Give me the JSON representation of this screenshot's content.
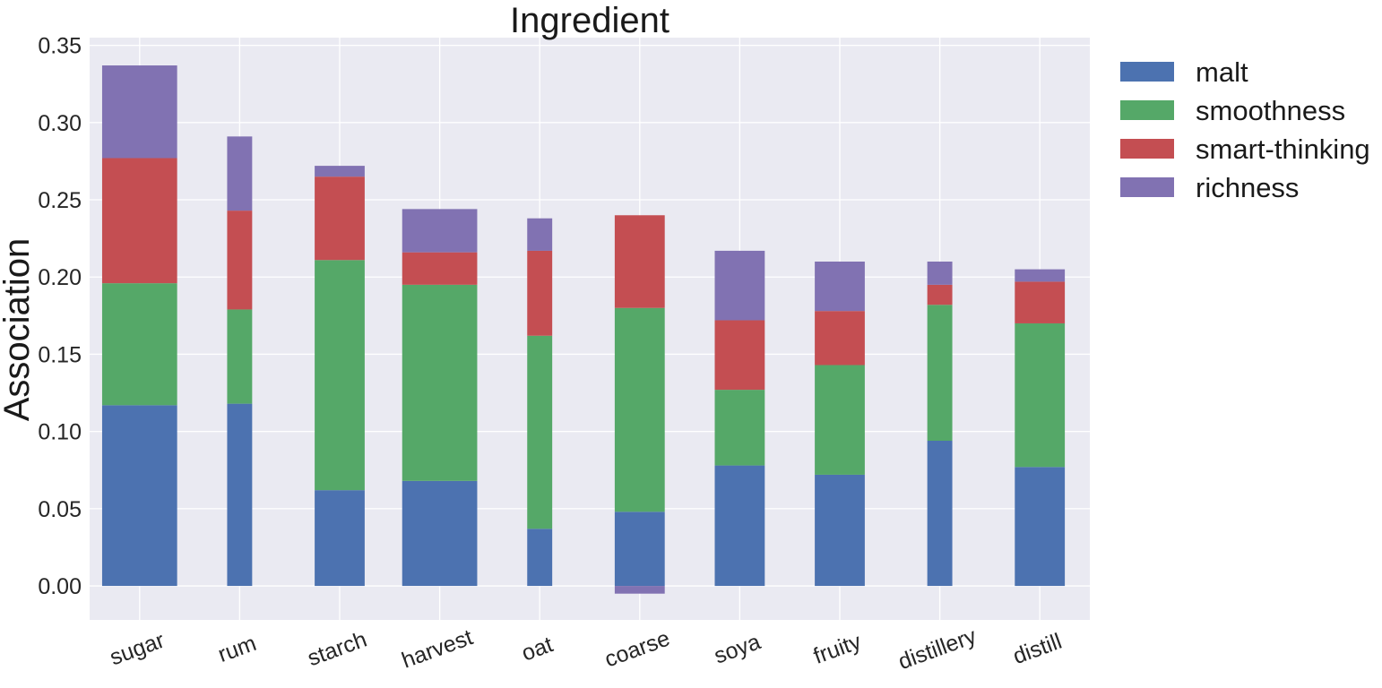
{
  "chart_data": {
    "type": "bar",
    "stacked": true,
    "title": "Ingredient",
    "xlabel": "",
    "ylabel": "Association",
    "ylim": [
      -0.022,
      0.355
    ],
    "yticks": [
      "0.00",
      "0.05",
      "0.10",
      "0.15",
      "0.20",
      "0.25",
      "0.30",
      "0.35"
    ],
    "grid": true,
    "legend_position": "outside-top-right",
    "categories": [
      "sugar",
      "rum",
      "starch",
      "harvest",
      "oat",
      "coarse",
      "soya",
      "fruity",
      "distillery",
      "distill"
    ],
    "bar_widths": [
      0.75,
      0.25,
      0.5,
      0.75,
      0.25,
      0.5,
      0.5,
      0.5,
      0.25,
      0.5
    ],
    "series": [
      {
        "name": "malt",
        "color": "#4c72b0",
        "values": [
          0.117,
          0.118,
          0.062,
          0.068,
          0.037,
          0.048,
          0.078,
          0.072,
          0.094,
          0.077
        ]
      },
      {
        "name": "smoothness",
        "color": "#55a868",
        "values": [
          0.079,
          0.061,
          0.149,
          0.127,
          0.125,
          0.132,
          0.049,
          0.071,
          0.088,
          0.093
        ]
      },
      {
        "name": "smart-thinking",
        "color": "#c44e52",
        "values": [
          0.081,
          0.064,
          0.054,
          0.021,
          0.055,
          0.06,
          0.045,
          0.035,
          0.013,
          0.027
        ]
      },
      {
        "name": "richness",
        "color": "#8172b2",
        "values": [
          0.06,
          0.048,
          0.007,
          0.028,
          0.021,
          -0.005,
          0.045,
          0.032,
          0.015,
          0.008
        ]
      }
    ]
  }
}
